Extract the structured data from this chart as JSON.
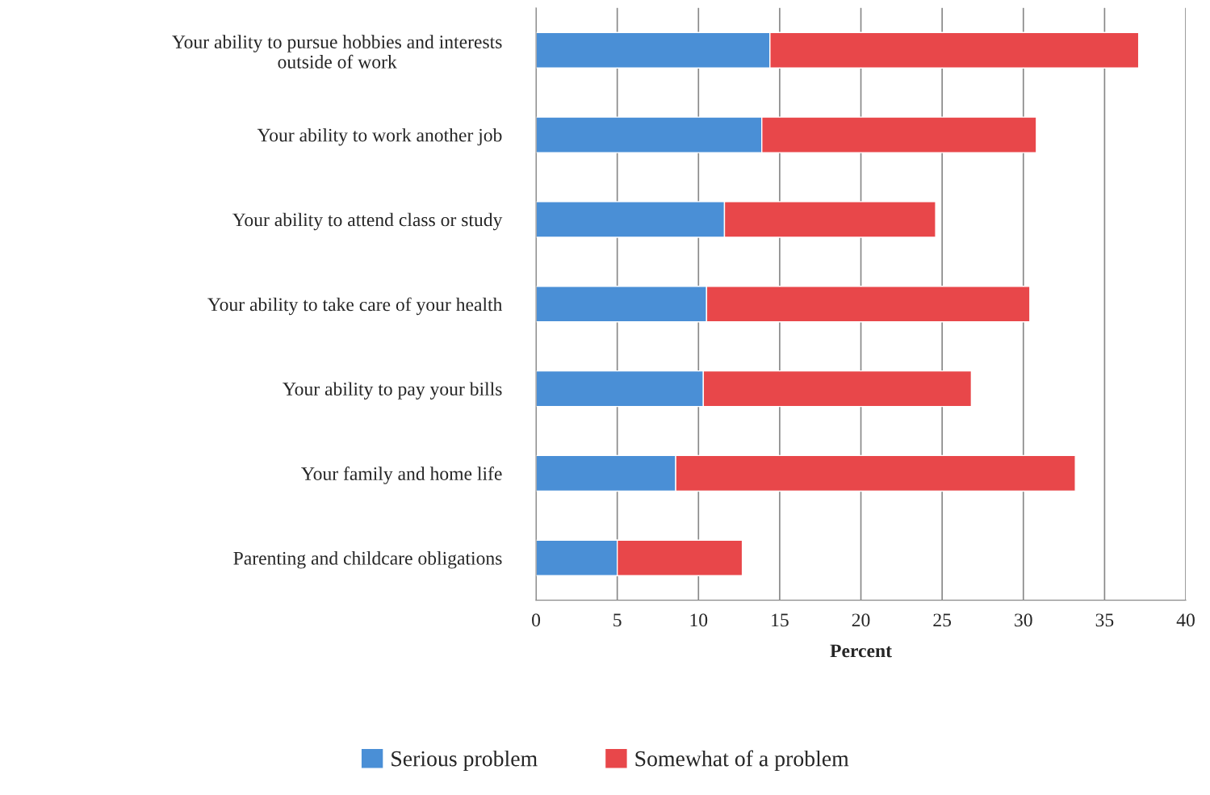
{
  "chart_data": {
    "type": "bar",
    "orientation": "horizontal",
    "stacked": true,
    "xlabel": "Percent",
    "categories": [
      "Your ability to pursue hobbies and interests\noutside of work",
      "Your ability to work another job",
      "Your ability to attend class or study",
      "Your ability to take care of your health",
      "Your ability to pay your bills",
      "Your family and home life",
      "Parenting and childcare obligations"
    ],
    "series": [
      {
        "name": "Serious problem",
        "color": "#4a8fd6",
        "values": [
          14.4,
          13.9,
          11.6,
          10.5,
          10.3,
          8.6,
          5.0
        ]
      },
      {
        "name": "Somewhat of a problem",
        "color": "#e8474a",
        "values": [
          22.7,
          16.9,
          13.0,
          19.9,
          16.5,
          24.6,
          7.7
        ]
      }
    ],
    "xlim": [
      0,
      40
    ],
    "xticks": [
      0,
      5,
      10,
      15,
      20,
      25,
      30,
      35,
      40
    ],
    "grid": "x",
    "legend": "bottom"
  }
}
